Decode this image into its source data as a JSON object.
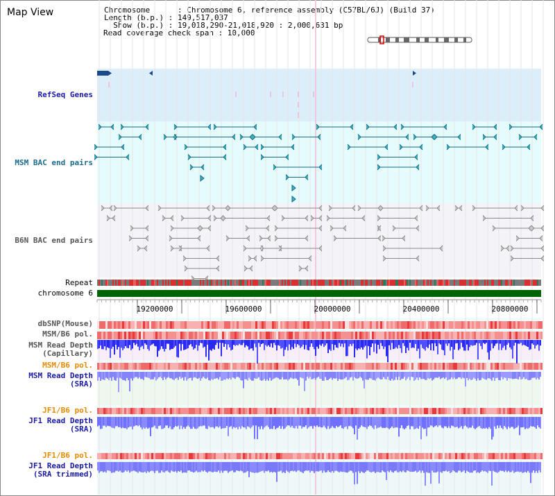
{
  "page_title": "Map View",
  "header": {
    "chromosome_line": "Chromosome      : Chromosome 6, reference assembly (C57BL/6J) (Build 37)",
    "length_line": "Length (b.p.) : 149,517,037",
    "show_line": "  Show (b.p.) : 19,018,290-21,018,920 : 2,000,631 bp",
    "coverage_line": "Read coverage check span : 10,000"
  },
  "tracks": {
    "refseq": "RefSeq Genes",
    "msm_bac": "MSM BAC end pairs",
    "b6n_bac": "B6N BAC end pairs",
    "repeat": "Repeat",
    "chromosome": "chromosome 6",
    "dbsnp": "dbSNP(Mouse)",
    "msm_b6_pol_1": "MSM/B6 pol.",
    "msm_read_depth_cap_1": "MSM Read Depth",
    "msm_read_depth_cap_2": "(Capillary)",
    "msm_b6_pol_2": "MSM/B6 pol.",
    "msm_read_depth_sra_1": "MSM Read Depth",
    "msm_read_depth_sra_2": "(SRA)",
    "jf1_b6_pol_1": "JF1/B6 pol.",
    "jf1_read_depth_sra_1": "JF1 Read Depth",
    "jf1_read_depth_sra_2": "(SRA)",
    "jf1_b6_pol_2": "JF1/B6 pol.",
    "jf1_read_depth_trim_1": "JF1 Read Depth",
    "jf1_read_depth_trim_2": "(SRA trimmed)"
  },
  "axis": {
    "ticks": [
      "19200000",
      "19600000",
      "20000000",
      "20400000",
      "20800000"
    ]
  },
  "colors": {
    "refseq_bg": "#dbeefa",
    "msm_bg": "#e6fbfb",
    "b6n_bg": "#f3f3f8",
    "chromosome_bar": "#006400",
    "msm_feature": "#14697f",
    "b6n_feature": "#888888",
    "depth_blue": "#2a2aee",
    "depth_light": "#8a8aff"
  }
}
